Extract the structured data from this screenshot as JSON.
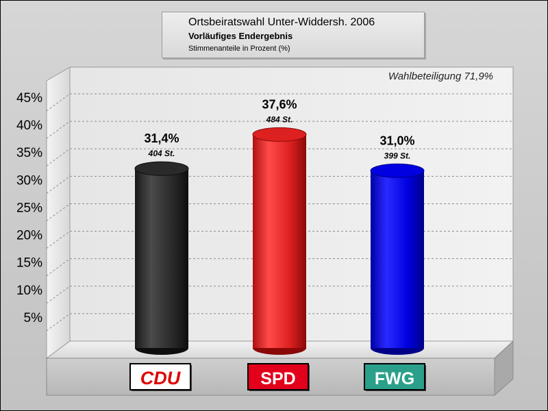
{
  "title": "Ortsbeiratswahl Unter-Widdersh. 2006",
  "subtitle": "Vorläufiges Endergebnis",
  "subtitle2": "Stimmenanteile in Prozent (%)",
  "annotation": "Wahlbeteiligung 71,9%",
  "chart_data": {
    "type": "bar",
    "categories": [
      "CDU",
      "SPD",
      "FWG"
    ],
    "values": [
      31.4,
      37.6,
      31.0
    ],
    "value_labels": [
      "31,4%",
      "37,6%",
      "31,0%"
    ],
    "vote_labels": [
      "404 St.",
      "484 St.",
      "399 St."
    ],
    "colors": [
      "#222222",
      "#e02020",
      "#0000e6"
    ],
    "ylim": [
      0,
      50
    ],
    "yticks": [
      5,
      10,
      15,
      20,
      25,
      30,
      35,
      40,
      45
    ],
    "ytick_labels": [
      "5%",
      "10%",
      "15%",
      "20%",
      "25%",
      "30%",
      "35%",
      "40%",
      "45%"
    ],
    "grid": true,
    "legend": "none"
  },
  "logos": [
    {
      "text": "CDU",
      "bg": "#ffffff",
      "fg": "#e00000",
      "border": "#000000"
    },
    {
      "text": "SPD",
      "bg": "#e2001a",
      "fg": "#ffffff",
      "border": "#000000"
    },
    {
      "text": "FWG",
      "bg": "#2aa08a",
      "fg": "#ffffff",
      "border": "#000000"
    }
  ]
}
